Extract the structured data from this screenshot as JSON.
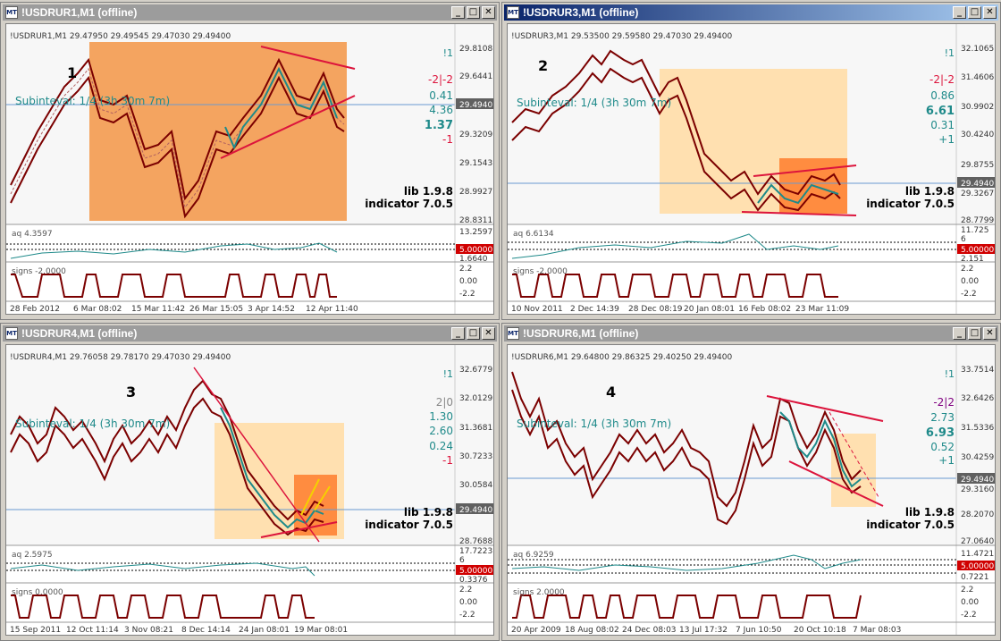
{
  "windows": [
    {
      "title": "!USDRUR1,M1 (offline)",
      "active": false,
      "header": "!USDRUR1,M1  29.47950 29.49545 29.47030 29.49400",
      "label_num": "1",
      "subinterval": "Subinteval: 1/4 (3h 30m 7m)",
      "info": [
        "!1",
        "-2|-2",
        "0.41",
        "4.36",
        "1.37",
        "-1"
      ],
      "lib": "lib 1.9.8",
      "indicator": "indicator 7.0.5",
      "price_labels": [
        "29.8108",
        "29.6441",
        "29.4940",
        "29.3209",
        "29.1543",
        "28.9927",
        "28.8311"
      ],
      "aq_text": "aq 4.3597",
      "aq_labels": [
        "13.2597",
        "5.00000",
        "1.6640"
      ],
      "signs_text": "signs -2.0000",
      "signs_labels": [
        "2.2",
        "0.00",
        "-2.2"
      ],
      "dates": [
        "28 Feb 2012",
        "6 Mar 08:02",
        "15 Mar 11:42",
        "26 Mar 15:05",
        "3 Apr 14:52",
        "12 Apr 11:40"
      ]
    },
    {
      "title": "!USDRUR3,M1 (offline)",
      "active": true,
      "header": "!USDRUR3,M1  29.53500 29.59580 29.47030 29.49400",
      "label_num": "2",
      "subinterval": "Subinteval: 1/4 (3h 30m 7m)",
      "info": [
        "!1",
        "-2|-2",
        "0.86",
        "6.61",
        "0.31",
        "+1"
      ],
      "lib": "lib 1.9.8",
      "indicator": "indicator 7.0.5",
      "price_labels": [
        "32.1065",
        "31.4606",
        "30.9902",
        "30.4240",
        "29.8755",
        "29.4940",
        "29.3267",
        "28.7799"
      ],
      "aq_text": "aq 6.6134",
      "aq_labels": [
        "11.725",
        "6",
        "5.00000",
        "2.151"
      ],
      "signs_text": "signs -2.0000",
      "signs_labels": [
        "2.2",
        "0.00",
        "-2.2"
      ],
      "dates": [
        "10 Nov 2011",
        "2 Dec 14:39",
        "28 Dec 08:19",
        "20 Jan 08:01",
        "16 Feb 08:02",
        "23 Mar 11:09"
      ]
    },
    {
      "title": "!USDRUR4,M1 (offline)",
      "active": false,
      "header": "!USDRUR4,M1  29.76058 29.78170 29.47030 29.49400",
      "label_num": "3",
      "subinterval": "Subinteval: 1/4 (3h 30m 7m)",
      "info": [
        "!1",
        "2|0",
        "1.30",
        "2.60",
        "0.24",
        "-1"
      ],
      "lib": "lib 1.9.8",
      "indicator": "indicator 7.0.5",
      "price_labels": [
        "32.6779",
        "32.0129",
        "31.3681",
        "30.7233",
        "30.0584",
        "29.4940",
        "28.7688"
      ],
      "aq_text": "aq 2.5975",
      "aq_labels": [
        "17.7223",
        "6",
        "5.00000",
        "0.3376"
      ],
      "signs_text": "signs 0.0000",
      "signs_labels": [
        "2.2",
        "0.00",
        "-2.2"
      ],
      "dates": [
        "15 Sep 2011",
        "12 Oct 11:14",
        "3 Nov 08:21",
        "8 Dec 14:14",
        "24 Jan 08:01",
        "19 Mar 08:01"
      ]
    },
    {
      "title": "!USDRUR6,M1 (offline)",
      "active": false,
      "header": "!USDRUR6,M1  29.64800 29.86325 29.40250 29.49400",
      "label_num": "4",
      "subinterval": "Subinteval: 1/4 (3h 30m 7m)",
      "info": [
        "!1",
        "-2|2",
        "2.73",
        "6.93",
        "0.52",
        "+1"
      ],
      "lib": "lib 1.9.8",
      "indicator": "indicator 7.0.5",
      "price_labels": [
        "33.7514",
        "32.6426",
        "31.5336",
        "30.4259",
        "29.4940",
        "29.3160",
        "28.2070",
        "27.0640"
      ],
      "aq_text": "aq 6.9259",
      "aq_labels": [
        "11.4721",
        "5.00000",
        "0.7221"
      ],
      "signs_text": "signs 2.0000",
      "signs_labels": [
        "2.2",
        "0.00",
        "-2.2"
      ],
      "dates": [
        "20 Apr 2009",
        "18 Aug 08:02",
        "24 Dec 08:03",
        "13 Jul 17:32",
        "7 Jun 10:50",
        "20 Oct 10:18",
        "7 Mar 08:03"
      ]
    }
  ],
  "buttons": {
    "minimize": "_",
    "maximize": "□",
    "close": "✕"
  },
  "colors": {
    "price_line": "#7b0000",
    "ma_line": "#1f8a8a",
    "trend_line": "#dc143c",
    "box_dark": "#f4a460",
    "box_light": "#ffe0b0",
    "box_orange": "#ff8c40",
    "active_title": "#0a246a",
    "inactive_title": "#9c9c9c",
    "current_price_bg": "#606060",
    "aq_level_bg": "#d00000"
  }
}
